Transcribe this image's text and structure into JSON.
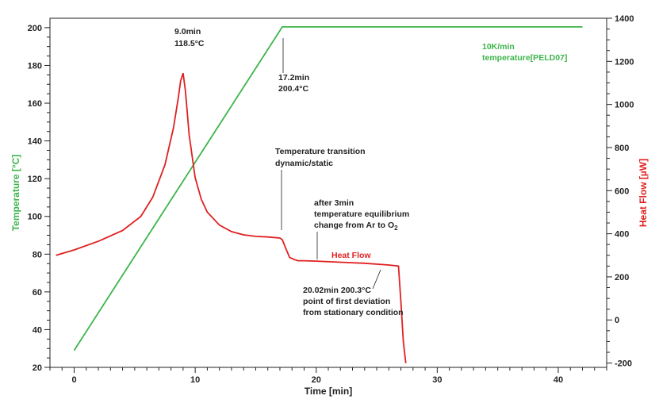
{
  "chart_data": {
    "type": "line",
    "x_axis": {
      "label": "Time [min]",
      "range": [
        -2,
        44
      ],
      "ticks": [
        0,
        10,
        20,
        30,
        40
      ]
    },
    "y_left": {
      "label": "Temperature [°C]",
      "range": [
        20,
        205
      ],
      "ticks": [
        20,
        40,
        60,
        80,
        100,
        120,
        140,
        160,
        180,
        200
      ],
      "color": "#3cb44b"
    },
    "y_right": {
      "label": "Heat Flow [µW]",
      "range": [
        -220,
        1400
      ],
      "ticks": [
        -200,
        0,
        200,
        400,
        600,
        800,
        1000,
        1200,
        1400
      ],
      "color": "#e02020"
    },
    "series": [
      {
        "name": "10K/min temperature[PELD07]",
        "axis": "left",
        "color": "#3cb44b",
        "x": [
          0,
          17.2,
          42
        ],
        "y": [
          29,
          200.4,
          200.4
        ]
      },
      {
        "name": "Heat Flow",
        "axis": "right",
        "color": "#e02020",
        "x": [
          -1.5,
          0,
          2,
          4,
          5.5,
          6.5,
          7.5,
          8.2,
          8.6,
          8.8,
          9.0,
          9.2,
          9.5,
          10,
          10.5,
          11,
          12,
          13,
          14,
          15,
          16,
          17,
          17.2,
          17.5,
          17.8,
          18.2,
          18.5,
          19,
          20,
          22,
          24,
          26,
          26.8,
          27.0,
          27.2,
          27.4
        ],
        "y": [
          300,
          325,
          365,
          415,
          480,
          570,
          720,
          890,
          1030,
          1110,
          1145,
          1060,
          860,
          660,
          560,
          500,
          440,
          410,
          395,
          388,
          385,
          380,
          372,
          330,
          290,
          280,
          275,
          275,
          273,
          268,
          263,
          255,
          250,
          80,
          -100,
          -200
        ]
      }
    ],
    "legend_labels": {
      "temp_line1": "10K/min",
      "temp_line2": "temperature[PELD07]",
      "heat_flow": "Heat Flow"
    },
    "annotations": {
      "peak_time": "9.0min",
      "peak_temp": "118.5°C",
      "ramp_end_time": "17.2min",
      "ramp_end_temp": "200.4°C",
      "transition_line1": "Temperature transition",
      "transition_line2": "dynamic/static",
      "equil_line1": "after 3min",
      "equil_line2": "temperature equilibrium",
      "equil_line3": "change from Ar to O",
      "equil_sub": "2",
      "deviation_line1": "20.02min 200.3°C",
      "deviation_line2": "point of first deviation",
      "deviation_line3": "from stationary condition"
    }
  }
}
